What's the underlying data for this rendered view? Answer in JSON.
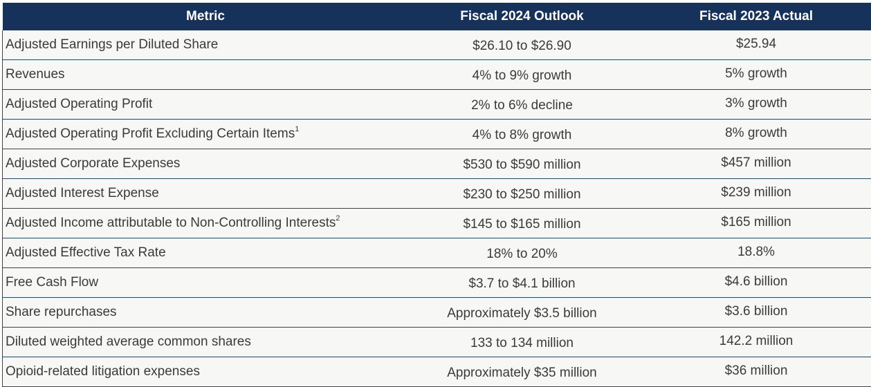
{
  "table": {
    "headers": {
      "metric": "Metric",
      "outlook": "Fiscal 2024 Outlook",
      "actual": "Fiscal 2023 Actual"
    },
    "rows": [
      {
        "metric": "Adjusted Earnings per Diluted Share",
        "footnote": "",
        "outlook": "$26.10 to $26.90",
        "actual": "$25.94"
      },
      {
        "metric": "Revenues",
        "footnote": "",
        "outlook": "4% to 9% growth",
        "actual": "5% growth"
      },
      {
        "metric": "Adjusted Operating Profit",
        "footnote": "",
        "outlook": "2% to 6% decline",
        "actual": "3% growth"
      },
      {
        "metric": "Adjusted Operating Profit Excluding Certain Items",
        "footnote": "1",
        "outlook": "4% to 8% growth",
        "actual": "8% growth"
      },
      {
        "metric": "Adjusted Corporate Expenses",
        "footnote": "",
        "outlook": "$530 to $590 million",
        "actual": "$457 million"
      },
      {
        "metric": "Adjusted Interest Expense",
        "footnote": "",
        "outlook": "$230 to $250 million",
        "actual": "$239 million"
      },
      {
        "metric": "Adjusted Income attributable to Non-Controlling Interests",
        "footnote": "2",
        "outlook": "$145 to $165 million",
        "actual": "$165 million"
      },
      {
        "metric": "Adjusted Effective Tax Rate",
        "footnote": "",
        "outlook": "18% to 20%",
        "actual": "18.8%"
      },
      {
        "metric": "Free Cash Flow",
        "footnote": "",
        "outlook": "$3.7 to $4.1 billion",
        "actual": "$4.6 billion"
      },
      {
        "metric": "Share repurchases",
        "footnote": "",
        "outlook": "Approximately $3.5 billion",
        "actual": "$3.6 billion"
      },
      {
        "metric": "Diluted weighted average common shares",
        "footnote": "",
        "outlook": "133 to 134 million",
        "actual": "142.2 million"
      },
      {
        "metric": "Opioid-related litigation expenses",
        "footnote": "",
        "outlook": "Approximately $35 million",
        "actual": "$36 million"
      }
    ]
  },
  "colors": {
    "header_bg": "#16325a",
    "header_text": "#ffffff",
    "row_bg": "#f7f7f5",
    "row_text": "#3a3a3a",
    "rule": "#2a4466"
  }
}
